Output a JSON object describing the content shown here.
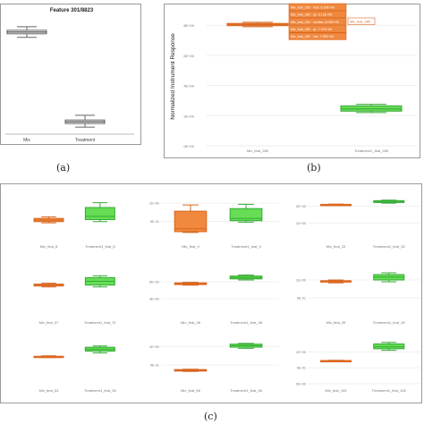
{
  "captions": {
    "a": "(a)",
    "b": "(b)",
    "c": "(c)"
  },
  "panel_a": {
    "title": "Feature 301/8823",
    "categories": [
      "Mix",
      "Treatment"
    ]
  },
  "panel_b": {
    "ylabel": "Normalized Instrument Response",
    "yticks": [
      "0E+00",
      "2E+00",
      "4E+00",
      "6E+00",
      "8E+00"
    ],
    "categories": [
      "Mix_feat_285",
      "Treatment1_feat_285"
    ],
    "tooltip": [
      "Mix_feat_285 · max: 8.20E+00",
      "Mix_feat_285 · q3: 8.12E+00",
      "Mix_feat_285 · median: 8.05E+00",
      "Mix_feat_285 · q1: 7.97E+00",
      "Mix_feat_285 · min: 7.90E+00"
    ],
    "tooltip_tag": "Mix_feat_285"
  },
  "chart_data": [
    {
      "type": "box",
      "title": "Feature 301/8823",
      "categories": [
        "Mix",
        "Treatment"
      ],
      "series": [
        {
          "min": 8.2,
          "q1": 8.5,
          "median": 8.65,
          "q3": 8.8,
          "max": 9.1
        },
        {
          "min": 0.6,
          "q1": 0.9,
          "median": 1.05,
          "q3": 1.2,
          "max": 1.6
        }
      ],
      "ylim": [
        0,
        10
      ]
    },
    {
      "type": "box",
      "ylabel": "Normalized Instrument Response",
      "categories": [
        "Mix_feat_285",
        "Treatment1_feat_285"
      ],
      "series": [
        {
          "min": 7.9,
          "q1": 7.97,
          "median": 8.05,
          "q3": 8.12,
          "max": 8.2
        },
        {
          "min": 2.2,
          "q1": 2.3,
          "median": 2.45,
          "q3": 2.65,
          "max": 2.75
        }
      ],
      "ylim": [
        0,
        9.2
      ],
      "yticks": [
        0,
        2,
        4,
        6,
        8
      ],
      "colors": [
        "#f0883e",
        "#66dd55"
      ]
    }
  ],
  "panel_c": {
    "subplots": [
      {
        "cats": [
          "Mix_feat_8",
          "Treatment1_feat_8"
        ],
        "yticks": [],
        "ylim": [
          0,
          1
        ],
        "boxes": [
          {
            "min": 0.42,
            "q1": 0.45,
            "median": 0.49,
            "q3": 0.53,
            "max": 0.57
          },
          {
            "min": 0.45,
            "q1": 0.5,
            "median": 0.58,
            "q3": 0.8,
            "max": 0.92
          }
        ]
      },
      {
        "cats": [
          "Mix_feat_9",
          "Treatment1_feat_9"
        ],
        "yticks": [
          "5E-01",
          "1E+00"
        ],
        "ytick_vals": [
          0.5,
          1.0
        ],
        "ylim": [
          0,
          1.1
        ],
        "boxes": [
          {
            "min": 0.2,
            "q1": 0.22,
            "median": 0.3,
            "q3": 0.78,
            "max": 0.95
          },
          {
            "min": 0.48,
            "q1": 0.52,
            "median": 0.58,
            "q3": 0.85,
            "max": 0.97
          }
        ]
      },
      {
        "cats": [
          "Mix_feat_33",
          "Treatment1_feat_33"
        ],
        "yticks": [
          "1E+00",
          "2E+00"
        ],
        "ytick_vals": [
          1,
          2
        ],
        "ylim": [
          0,
          2.4
        ],
        "boxes": [
          {
            "min": 2.05,
            "q1": 2.07,
            "median": 2.09,
            "q3": 2.11,
            "max": 2.13
          },
          {
            "min": 2.18,
            "q1": 2.22,
            "median": 2.28,
            "q3": 2.33,
            "max": 2.36
          }
        ]
      },
      {
        "cats": [
          "Mix_feat_37",
          "Treatment1_feat_37"
        ],
        "yticks": [],
        "ylim": [
          0,
          1
        ],
        "boxes": [
          {
            "min": 0.62,
            "q1": 0.64,
            "median": 0.66,
            "q3": 0.68,
            "max": 0.7
          },
          {
            "min": 0.62,
            "q1": 0.66,
            "median": 0.74,
            "q3": 0.82,
            "max": 0.86
          }
        ]
      },
      {
        "cats": [
          "Mix_feat_38",
          "Treatment1_feat_38"
        ],
        "yticks": [
          "3E+00",
          "6E+00"
        ],
        "ytick_vals": [
          3,
          6
        ],
        "ylim": [
          0,
          8.2
        ],
        "boxes": [
          {
            "min": 5.4,
            "q1": 5.5,
            "median": 5.65,
            "q3": 5.8,
            "max": 5.9
          },
          {
            "min": 6.3,
            "q1": 6.5,
            "median": 6.75,
            "q3": 7.0,
            "max": 7.2
          }
        ]
      },
      {
        "cats": [
          "Mix_feat_39",
          "Treatment1_feat_39"
        ],
        "yticks": [
          "5E-01",
          "1E+00"
        ],
        "ytick_vals": [
          0.5,
          1.0
        ],
        "ylim": [
          0,
          1.3
        ],
        "boxes": [
          {
            "min": 0.92,
            "q1": 0.94,
            "median": 0.96,
            "q3": 0.98,
            "max": 1.0
          },
          {
            "min": 0.95,
            "q1": 1.0,
            "median": 1.08,
            "q3": 1.15,
            "max": 1.2
          }
        ]
      },
      {
        "cats": [
          "Mix_feat_54",
          "Treatment1_feat_54"
        ],
        "yticks": [],
        "ylim": [
          0,
          1
        ],
        "boxes": [
          {
            "min": 0.61,
            "q1": 0.62,
            "median": 0.63,
            "q3": 0.64,
            "max": 0.65
          },
          {
            "min": 0.72,
            "q1": 0.76,
            "median": 0.8,
            "q3": 0.85,
            "max": 0.88
          }
        ]
      },
      {
        "cats": [
          "Mix_feat_56",
          "Treatment1_feat_56"
        ],
        "yticks": [
          "5E-01",
          "1E+00"
        ],
        "ytick_vals": [
          0.5,
          1.0
        ],
        "ylim": [
          0,
          1.15
        ],
        "boxes": [
          {
            "min": 0.33,
            "q1": 0.34,
            "median": 0.36,
            "q3": 0.38,
            "max": 0.39
          },
          {
            "min": 0.95,
            "q1": 0.98,
            "median": 1.02,
            "q3": 1.06,
            "max": 1.08
          }
        ]
      },
      {
        "cats": [
          "Mix_feat_105",
          "Treatment1_feat_105"
        ],
        "yticks": [
          "0E+00",
          "5E-01",
          "1E+00"
        ],
        "ytick_vals": [
          0,
          0.5,
          1.0
        ],
        "ylim": [
          0,
          1.35
        ],
        "boxes": [
          {
            "min": 0.7,
            "q1": 0.71,
            "median": 0.72,
            "q3": 0.73,
            "max": 0.74
          },
          {
            "min": 1.05,
            "q1": 1.1,
            "median": 1.16,
            "q3": 1.25,
            "max": 1.3
          }
        ]
      }
    ]
  },
  "colors": {
    "mix": "#f0883e",
    "mix_edge": "#d9661f",
    "treat": "#66dd55",
    "treat_edge": "#33aa33",
    "frame": "#9a9a9a"
  }
}
